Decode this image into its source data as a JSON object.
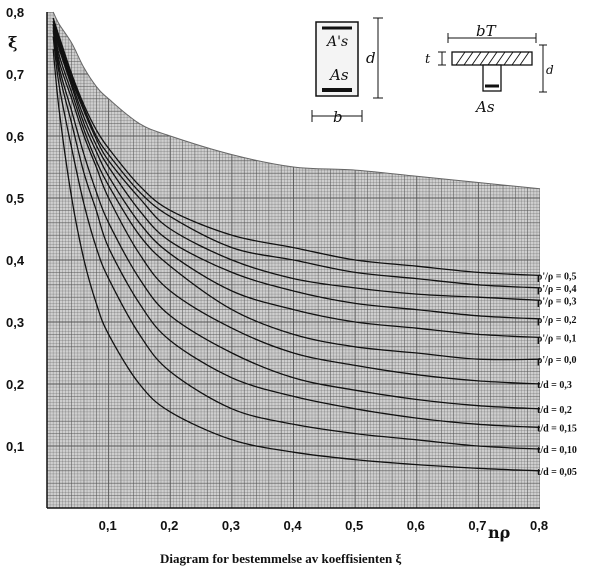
{
  "chart_data": {
    "type": "line",
    "title": "Diagram for bestemmelse av koeffisienten ξ",
    "xlabel": "nρ",
    "ylabel": "ξ",
    "xlim": [
      0,
      0.8
    ],
    "ylim": [
      0,
      0.8
    ],
    "x_ticks": [
      "0,1",
      "0,2",
      "0,3",
      "0,4",
      "0,5",
      "0,6",
      "0,7",
      "0,8"
    ],
    "y_ticks": [
      "0,1",
      "0,2",
      "0,3",
      "0,4",
      "0,5",
      "0,6",
      "0,7",
      "0,8"
    ],
    "grid": true,
    "series": [
      {
        "name": "ρ'/ρ = 0,5",
        "x": [
          0.01,
          0.02,
          0.04,
          0.06,
          0.08,
          0.1,
          0.15,
          0.2,
          0.3,
          0.4,
          0.5,
          0.6,
          0.7,
          0.8
        ],
        "y": [
          0.79,
          0.76,
          0.7,
          0.65,
          0.61,
          0.58,
          0.52,
          0.48,
          0.44,
          0.42,
          0.4,
          0.39,
          0.38,
          0.375
        ]
      },
      {
        "name": "ρ'/ρ = 0,4",
        "x": [
          0.01,
          0.02,
          0.04,
          0.06,
          0.08,
          0.1,
          0.15,
          0.2,
          0.3,
          0.4,
          0.5,
          0.6,
          0.7,
          0.8
        ],
        "y": [
          0.79,
          0.755,
          0.695,
          0.645,
          0.6,
          0.57,
          0.51,
          0.47,
          0.42,
          0.4,
          0.38,
          0.37,
          0.36,
          0.355
        ]
      },
      {
        "name": "ρ'/ρ = 0,3",
        "x": [
          0.01,
          0.02,
          0.04,
          0.06,
          0.08,
          0.1,
          0.15,
          0.2,
          0.3,
          0.4,
          0.5,
          0.6,
          0.7,
          0.8
        ],
        "y": [
          0.785,
          0.75,
          0.69,
          0.64,
          0.595,
          0.56,
          0.5,
          0.45,
          0.4,
          0.37,
          0.355,
          0.345,
          0.34,
          0.335
        ]
      },
      {
        "name": "ρ'/ρ = 0,2",
        "x": [
          0.01,
          0.02,
          0.04,
          0.06,
          0.08,
          0.1,
          0.15,
          0.2,
          0.3,
          0.4,
          0.5,
          0.6,
          0.7,
          0.8
        ],
        "y": [
          0.785,
          0.745,
          0.685,
          0.63,
          0.585,
          0.55,
          0.48,
          0.43,
          0.38,
          0.35,
          0.33,
          0.32,
          0.31,
          0.305
        ]
      },
      {
        "name": "ρ'/ρ = 0,1",
        "x": [
          0.01,
          0.02,
          0.04,
          0.06,
          0.08,
          0.1,
          0.15,
          0.2,
          0.3,
          0.4,
          0.5,
          0.6,
          0.7,
          0.8
        ],
        "y": [
          0.78,
          0.74,
          0.68,
          0.62,
          0.575,
          0.535,
          0.46,
          0.41,
          0.35,
          0.32,
          0.3,
          0.29,
          0.28,
          0.275
        ]
      },
      {
        "name": "ρ'/ρ = 0,0",
        "x": [
          0.01,
          0.02,
          0.04,
          0.06,
          0.08,
          0.1,
          0.15,
          0.2,
          0.3,
          0.4,
          0.5,
          0.6,
          0.7,
          0.8
        ],
        "y": [
          0.78,
          0.73,
          0.67,
          0.61,
          0.56,
          0.52,
          0.44,
          0.39,
          0.32,
          0.28,
          0.26,
          0.25,
          0.24,
          0.24
        ]
      },
      {
        "name": "t/d = 0,3",
        "x": [
          0.01,
          0.02,
          0.04,
          0.06,
          0.08,
          0.1,
          0.15,
          0.2,
          0.3,
          0.4,
          0.5,
          0.6,
          0.7,
          0.8
        ],
        "y": [
          0.78,
          0.72,
          0.66,
          0.6,
          0.55,
          0.5,
          0.41,
          0.35,
          0.29,
          0.25,
          0.23,
          0.215,
          0.205,
          0.2
        ]
      },
      {
        "name": "t/d = 0,2",
        "x": [
          0.01,
          0.02,
          0.04,
          0.06,
          0.08,
          0.1,
          0.15,
          0.2,
          0.3,
          0.4,
          0.5,
          0.6,
          0.7,
          0.8
        ],
        "y": [
          0.775,
          0.71,
          0.64,
          0.57,
          0.51,
          0.46,
          0.37,
          0.31,
          0.25,
          0.21,
          0.19,
          0.175,
          0.165,
          0.16
        ]
      },
      {
        "name": "t/d = 0,15",
        "x": [
          0.01,
          0.02,
          0.04,
          0.06,
          0.08,
          0.1,
          0.15,
          0.2,
          0.3,
          0.4,
          0.5,
          0.6,
          0.7,
          0.8
        ],
        "y": [
          0.77,
          0.7,
          0.62,
          0.54,
          0.48,
          0.42,
          0.33,
          0.27,
          0.21,
          0.18,
          0.16,
          0.145,
          0.135,
          0.13
        ]
      },
      {
        "name": "t/d = 0,10",
        "x": [
          0.01,
          0.02,
          0.04,
          0.06,
          0.08,
          0.1,
          0.15,
          0.2,
          0.3,
          0.4,
          0.5,
          0.6,
          0.7,
          0.8
        ],
        "y": [
          0.76,
          0.68,
          0.58,
          0.49,
          0.42,
          0.37,
          0.28,
          0.22,
          0.16,
          0.135,
          0.12,
          0.11,
          0.1,
          0.095
        ]
      },
      {
        "name": "t/d = 0,05",
        "x": [
          0.01,
          0.02,
          0.04,
          0.06,
          0.08,
          0.1,
          0.15,
          0.2,
          0.3,
          0.4,
          0.5,
          0.6,
          0.7,
          0.8
        ],
        "y": [
          0.74,
          0.64,
          0.5,
          0.4,
          0.33,
          0.28,
          0.2,
          0.155,
          0.11,
          0.09,
          0.078,
          0.07,
          0.064,
          0.06
        ]
      }
    ],
    "envelope": {
      "x": [
        0.01,
        0.02,
        0.04,
        0.06,
        0.08,
        0.1,
        0.15,
        0.2,
        0.3,
        0.4,
        0.5,
        0.6,
        0.7,
        0.8
      ],
      "y": [
        0.8,
        0.78,
        0.75,
        0.71,
        0.68,
        0.66,
        0.62,
        0.6,
        0.57,
        0.55,
        0.545,
        0.535,
        0.525,
        0.515
      ]
    }
  },
  "inset_left": {
    "top_label": "A's",
    "bottom_label": "As",
    "depth_label": "d",
    "width_label": "b"
  },
  "inset_right": {
    "width_label": "bT",
    "thickness_label": "t",
    "depth_label": "d",
    "steel_label": "As"
  }
}
